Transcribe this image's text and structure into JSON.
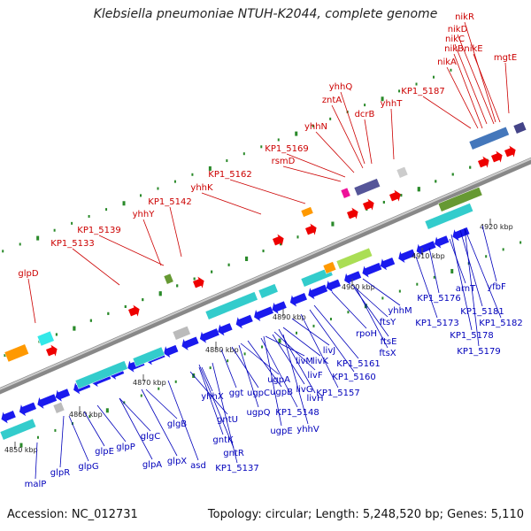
{
  "title": "Klebsiella pneumoniae NTUH-K2044, complete genome",
  "footer": {
    "accession": "Accession: NC_012731",
    "summary": "Topology: circular; Length: 5,248,520 bp; Genes: 5,110"
  },
  "colors": {
    "upper_gene_label": "#cc0000",
    "lower_gene_label": "#0000bb",
    "backbone": "#888888",
    "forward_arrow": "#ee0000",
    "reverse_arrow": "#1a1aee",
    "tick": "#2a8a2a"
  },
  "scale_ticks": [
    "4850 kbp",
    "4860 kbp",
    "4870 kbp",
    "4880 kbp",
    "4890 kbp",
    "4900 kbp",
    "4910 kbp",
    "4920 kbp"
  ],
  "upper_labels": [
    "glpD",
    "KP1_5133",
    "KP1_5139",
    "yhhY",
    "KP1_5142",
    "yhhK",
    "KP1_5162",
    "rsmD",
    "KP1_5169",
    "yhhN",
    "zntA",
    "yhhQ",
    "dcrB",
    "yhhT",
    "KP1_5187",
    "nikA",
    "nikB",
    "nikC",
    "nikD",
    "nikR",
    "nikE",
    "mgtE"
  ],
  "lower_labels": [
    "malP",
    "glpR",
    "glpG",
    "glpE",
    "glpP",
    "glpA",
    "glgC",
    "glpX",
    "glgB",
    "asd",
    "gntU",
    "gntK",
    "gntR",
    "KP1_5137",
    "yhhX",
    "ggt",
    "ugpC",
    "ugpA",
    "ugpQ",
    "ugpB",
    "ugpE",
    "livM",
    "livK",
    "livF",
    "livG",
    "livH",
    "livJ",
    "KP1_5148",
    "yhhV",
    "KP1_5157",
    "KP1_5160",
    "KP1_5161",
    "rpoH",
    "ftsE",
    "ftsX",
    "ftsY",
    "yhhM",
    "KP1_5173",
    "KP1_5176",
    "arnT",
    "KP1_5181",
    "KP1_5178",
    "KP1_5182",
    "KP1_5179",
    "yfbF"
  ]
}
